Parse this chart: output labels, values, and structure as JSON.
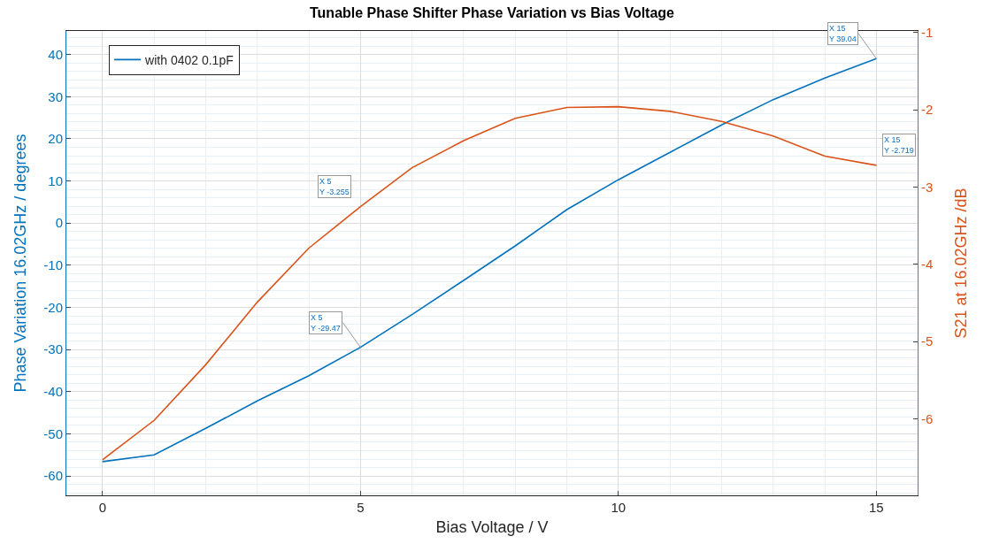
{
  "chart_data": {
    "type": "line",
    "title": "Tunable Phase Shifter Phase Variation vs Bias Voltage",
    "xlabel": "Bias Voltage / V",
    "ylabel": "Phase Variation 16.02GHz / degrees",
    "y2label": "S21 at 16.02GHz /dB",
    "x": [
      0,
      1,
      2,
      3,
      4,
      5,
      6,
      7,
      8,
      9,
      10,
      11,
      12,
      13,
      14,
      15
    ],
    "series": [
      {
        "name": "with 0402 0.1pF",
        "color": "#0072bd",
        "values": [
          -56.6,
          -55,
          -48.7,
          -42.2,
          -36.2,
          -29.47,
          -21.7,
          -13.6,
          -5.4,
          3.2,
          10.3,
          16.8,
          23.3,
          29.3,
          34.4,
          39.04
        ]
      },
      {
        "color": "#d95319",
        "axis": "y2",
        "values": [
          -6.53,
          -6.02,
          -5.3,
          -4.49,
          -3.79,
          -3.255,
          -2.75,
          -2.4,
          -2.11,
          -1.97,
          -1.96,
          -2.02,
          -2.15,
          -2.34,
          -2.6,
          -2.719
        ]
      }
    ],
    "xlim": [
      -0.7,
      15.8
    ],
    "xticks": [
      0,
      5,
      10,
      15
    ],
    "ylim": [
      -64.6,
      45.6
    ],
    "yticks": [
      -60,
      -50,
      -40,
      -30,
      -20,
      -10,
      0,
      10,
      20,
      30,
      40
    ],
    "y2lim": [
      -6.99,
      -0.98
    ],
    "y2ticks": [
      -6,
      -5,
      -4,
      -3,
      -2,
      -1
    ],
    "annotations": [
      {
        "text": "X 5\nY -29.47",
        "x": 5,
        "y": -29.47
      },
      {
        "text": "X 15\nY 39.04",
        "x": 15,
        "y": 39.04
      },
      "X 5\nY -3.255",
      "X 15\nY -2.719"
    ],
    "grid": true,
    "legend": "top left",
    "marker": "none",
    "line_style": "solid"
  }
}
